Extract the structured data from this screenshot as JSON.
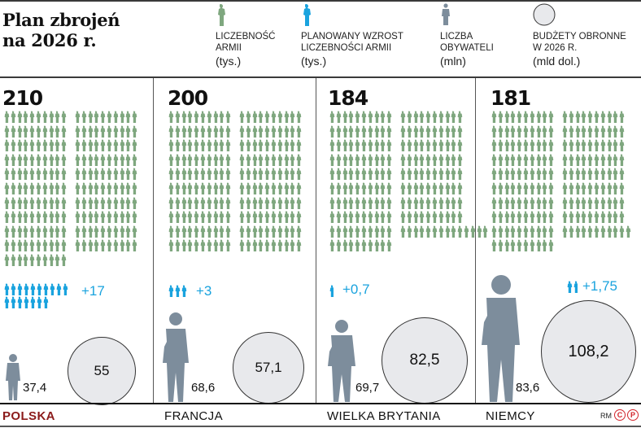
{
  "title": "Plan zbrojeń\nna 2026 r.",
  "colors": {
    "soldier_green": "#7fa77f",
    "growth_blue": "#1aa3de",
    "population_grey": "#7d8d9c",
    "budget_fill": "#e8e9ec",
    "poland_red": "#8b1a1a",
    "credit_red": "#d2232a"
  },
  "legend": [
    {
      "icon": "soldier-green-icon",
      "label": "LICZEBNOŚĆ\nARMII",
      "unit": "(tys.)"
    },
    {
      "icon": "soldier-blue-icon",
      "label": "PLANOWANY WZROST\nLICZEBNOŚCI ARMII",
      "unit": "(tys.)"
    },
    {
      "icon": "person-grey-icon",
      "label": "LICZBA\nOBYWATELI",
      "unit": "(mln)"
    },
    {
      "icon": "circle-budget-icon",
      "label": "BUDŻETY OBRONNE\nW 2026 R.",
      "unit": "(mld dol.)"
    }
  ],
  "countries": [
    {
      "name": "POLSKA",
      "army": "210",
      "growth": "+17",
      "population": "37,4",
      "budget": "55"
    },
    {
      "name": "FRANCJA",
      "army": "200",
      "growth": "+3",
      "population": "68,6",
      "budget": "57,1"
    },
    {
      "name": "WIELKA BRYTANIA",
      "army": "184",
      "growth": "+0,7",
      "population": "69,7",
      "budget": "82,5"
    },
    {
      "name": "NIEMCY",
      "name_key": "de",
      "army": "181",
      "growth": "+1,75",
      "population": "83,6",
      "budget": "108,2"
    }
  ],
  "credit": {
    "author": "RM",
    "c": "C",
    "p": "P"
  },
  "chart_data": {
    "type": "table",
    "title": "Plan zbrojeń na 2026 r.",
    "categories": [
      "Polska",
      "Francja",
      "Wielka Brytania",
      "Niemcy"
    ],
    "series": [
      {
        "name": "Liczebność armii (tys.)",
        "values": [
          210,
          200,
          184,
          181
        ]
      },
      {
        "name": "Planowany wzrost liczebności armii (tys.)",
        "values": [
          17,
          3,
          0.7,
          1.75
        ]
      },
      {
        "name": "Liczba obywateli (mln)",
        "values": [
          37.4,
          68.6,
          69.7,
          83.6
        ]
      },
      {
        "name": "Budżety obronne w 2026 r. (mld dol.)",
        "values": [
          55,
          57.1,
          82.5,
          108.2
        ]
      }
    ],
    "notes": "Pictogram: each green soldier = 1 tys. troops; blue soldiers = planned growth; grey figure height ∝ population; circle area ∝ budget."
  }
}
